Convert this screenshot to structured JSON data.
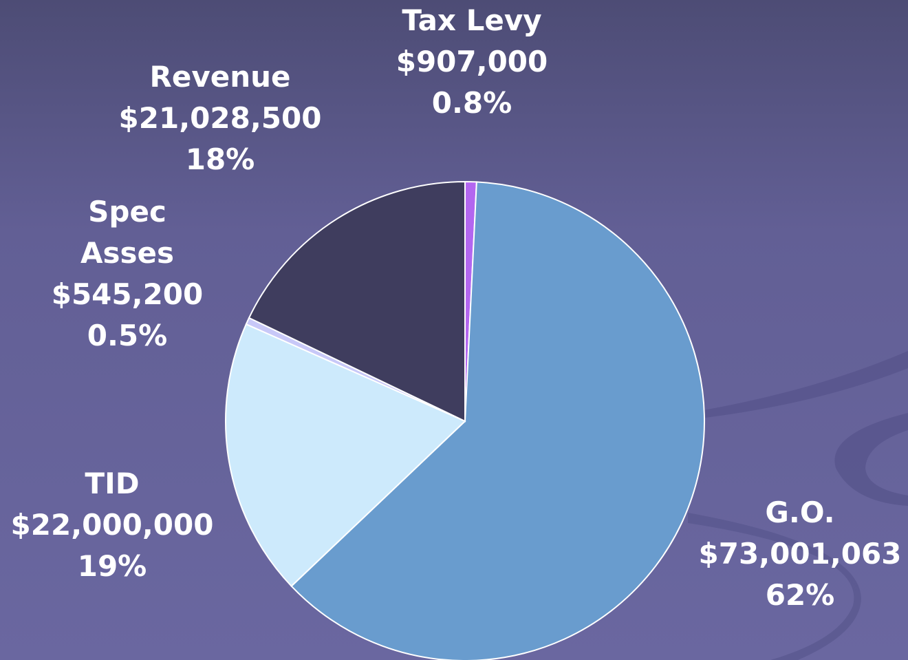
{
  "chart_data": {
    "type": "pie",
    "categories": [
      "Tax Levy",
      "G.O.",
      "TID",
      "Spec Asses",
      "Revenue"
    ],
    "values": [
      907000,
      73001063,
      22000000,
      545200,
      21028500
    ],
    "value_labels": [
      "$907,000",
      "$73,001,063",
      "$22,000,000",
      "$545,200",
      "$21,028,500"
    ],
    "percent_labels": [
      "0.8%",
      "62%",
      "19%",
      "0.5%",
      "18%"
    ],
    "colors": [
      "#b366f0",
      "#699cce",
      "#cdeafc",
      "#c8c8f8",
      "#3f3d5e"
    ]
  }
}
